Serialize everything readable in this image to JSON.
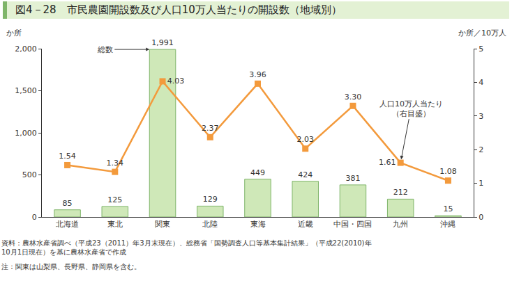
{
  "chart_data": {
    "type": "bar",
    "title": "図4－28　市民農園開設数及び人口10万人当たりの開設数（地域別）",
    "ylabel": "か所",
    "y2label": "か所／10万人",
    "categories": [
      "北海道",
      "東北",
      "関東",
      "北陸",
      "東海",
      "近畿",
      "中国・四国",
      "九州",
      "沖縄"
    ],
    "series": [
      {
        "type": "bar",
        "color": "#cfe8b8",
        "values": [
          85,
          125,
          1991,
          129,
          449,
          424,
          381,
          212,
          15
        ],
        "value_labels": [
          "85",
          "125",
          "1,991",
          "129",
          "449",
          "424",
          "381",
          "212",
          "15"
        ]
      },
      {
        "type": "line",
        "axis": "y2",
        "color": "#f39a3c",
        "marker": "square",
        "values": [
          1.54,
          1.34,
          4.03,
          2.37,
          3.96,
          2.03,
          3.3,
          1.61,
          1.08
        ],
        "value_labels": [
          "1.54",
          "1.34",
          "4.03",
          "2.37",
          "3.96",
          "2.03",
          "3.30",
          "1.61",
          "1.08"
        ]
      }
    ],
    "ylim": [
      0,
      2000
    ],
    "yticks": [
      0,
      500,
      {
        "value": 1000,
        "label": "1,000"
      },
      {
        "value": 1500,
        "label": "1,500"
      },
      {
        "value": 2000,
        "label": "2,000"
      }
    ],
    "y2lim": [
      0,
      5
    ],
    "y2ticks": [
      0,
      1,
      2,
      3,
      4,
      5
    ],
    "data_labels": true,
    "grid": false,
    "annotations": [
      {
        "text": [
          "総数"
        ],
        "category": "関東",
        "series": 0
      },
      {
        "text": [
          "人口10万人当たり",
          "（右目盛）"
        ],
        "category": "九州",
        "series": 1
      }
    ],
    "source": [
      "資料：農林水産省調べ（平成23（2011）年3月末現在）、総務省「国勢調査人口等基本集計結果」（平成22(2010)年",
      "10月1日現在）を基に農林水産省で作成"
    ],
    "note": "注：関東は山梨県、長野県、静岡県を含む。"
  }
}
